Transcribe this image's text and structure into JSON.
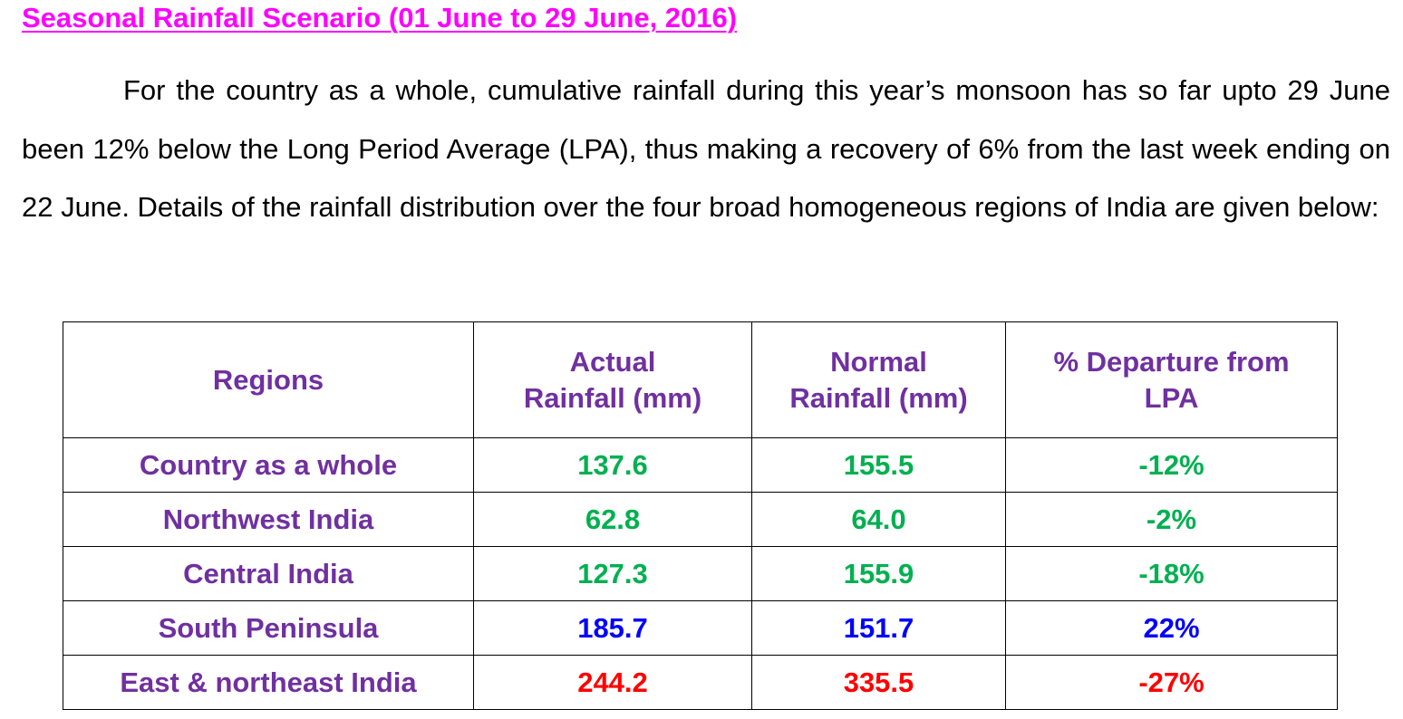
{
  "title": "Seasonal Rainfall Scenario (01 June to 29 June, 2016)",
  "paragraph": "For the country as a whole, cumulative rainfall during this year’s monsoon has so far upto 29 June been 12% below the Long Period Average (LPA), thus making a recovery of 6% from the last week ending on 22 June. Details of the rainfall distribution over the four broad homogeneous regions of India are given below:",
  "table": {
    "headers": [
      {
        "line1": "Regions",
        "line2": ""
      },
      {
        "line1": "Actual",
        "line2": "Rainfall (mm)"
      },
      {
        "line1": "Normal",
        "line2": "Rainfall (mm)"
      },
      {
        "line1": "% Departure from",
        "line2": "LPA"
      }
    ],
    "rows": [
      {
        "region": "Country as a whole",
        "actual": "137.6",
        "normal": "155.5",
        "departure": "-12%",
        "color": "#00b050"
      },
      {
        "region": "Northwest India",
        "actual": "62.8",
        "normal": "64.0",
        "departure": "-2%",
        "color": "#00b050"
      },
      {
        "region": "Central India",
        "actual": "127.3",
        "normal": "155.9",
        "departure": "-18%",
        "color": "#00b050"
      },
      {
        "region": "South Peninsula",
        "actual": "185.7",
        "normal": "151.7",
        "departure": "22%",
        "color": "#0000ff"
      },
      {
        "region": "East & northeast India",
        "actual": "244.2",
        "normal": "335.5",
        "departure": "-27%",
        "color": "#ff0000"
      }
    ]
  }
}
